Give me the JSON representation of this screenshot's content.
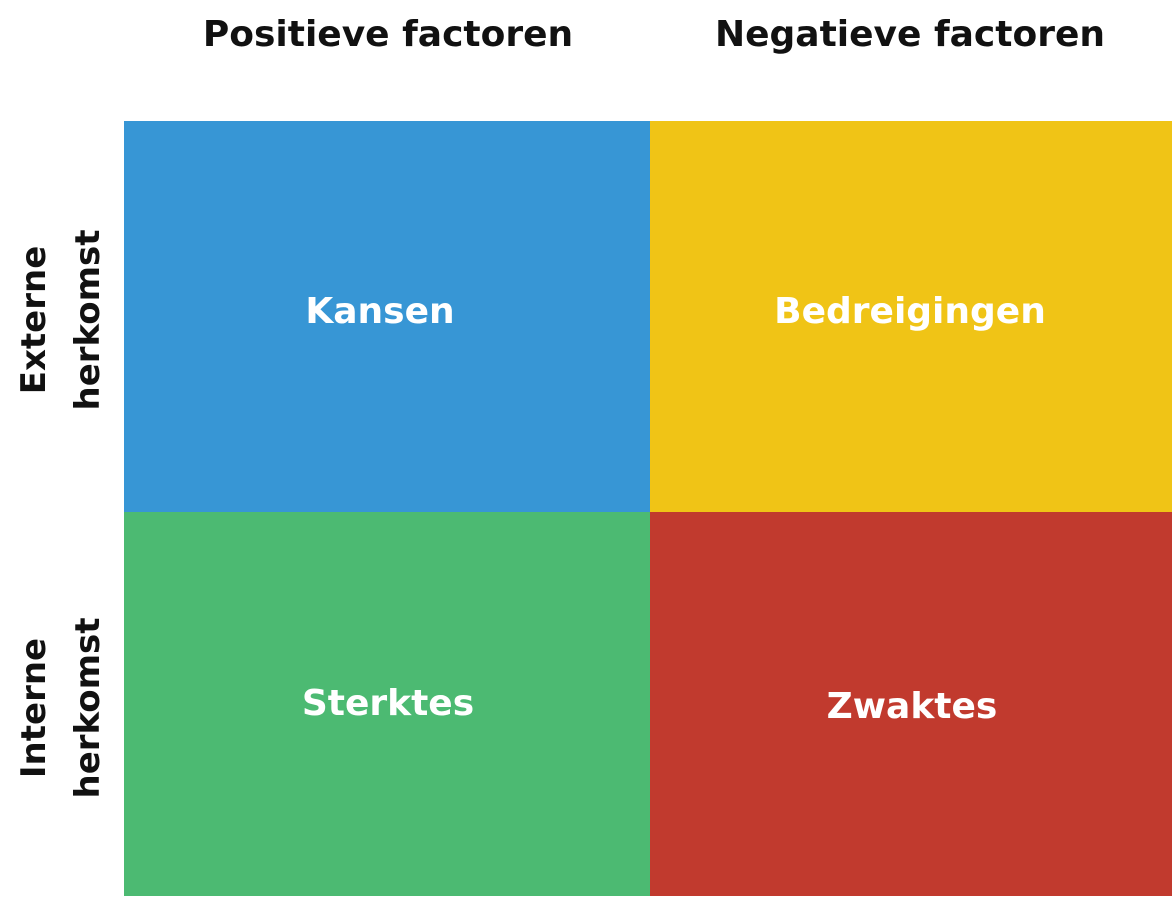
{
  "columns": [
    "Positieve factoren",
    "Negatieve factoren"
  ],
  "rows": [
    {
      "label": [
        "Externe",
        "herkomst"
      ]
    },
    {
      "label": [
        "Interne",
        "herkomst"
      ]
    }
  ],
  "cells": [
    [
      "Kansen",
      "Bedreigingen"
    ],
    [
      "Sterktes",
      "Zwaktes"
    ]
  ]
}
